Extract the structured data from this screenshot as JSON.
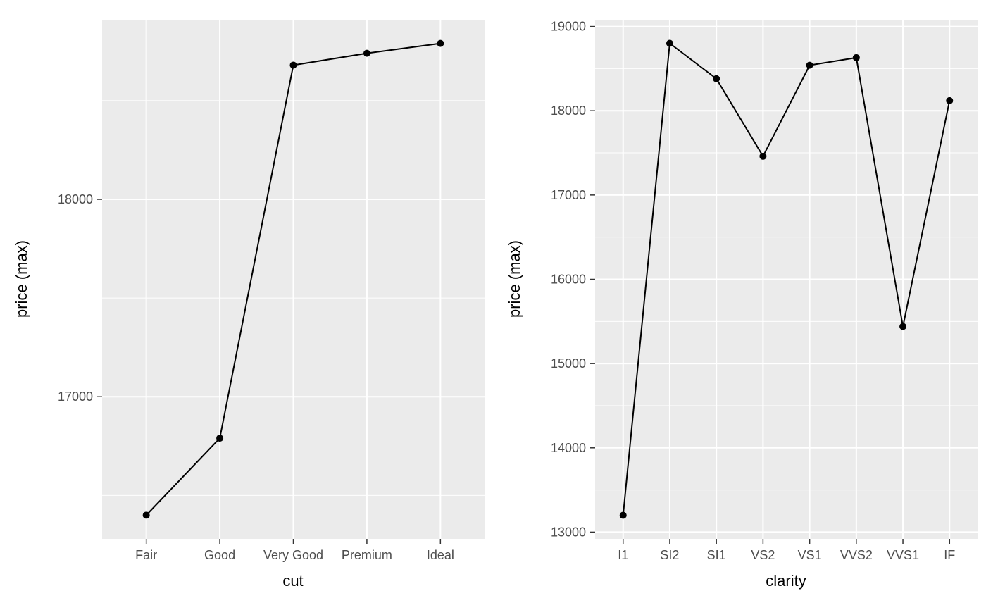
{
  "theme": {
    "panel_bg": "#EBEBEB",
    "grid_color": "#FFFFFF",
    "line_color": "#000000",
    "point_color": "#000000",
    "tick_color": "#333333",
    "tick_label_color": "#4D4D4D",
    "axis_title_color": "#000000",
    "background": "#FFFFFF"
  },
  "chart_data": [
    {
      "type": "line",
      "title": "",
      "xlabel": "cut",
      "ylabel": "price (max)",
      "categories": [
        "Fair",
        "Good",
        "Very Good",
        "Premium",
        "Ideal"
      ],
      "values": [
        16400,
        16790,
        18680,
        18740,
        18790
      ],
      "ylim": [
        16280,
        18910
      ],
      "yticks": [
        17000,
        18000
      ],
      "yticks_minor": [
        16500,
        17500,
        18500
      ],
      "legend": "none",
      "grid": "on"
    },
    {
      "type": "line",
      "title": "",
      "xlabel": "clarity",
      "ylabel": "price (max)",
      "categories": [
        "I1",
        "SI2",
        "SI1",
        "VS2",
        "VS1",
        "VVS2",
        "VVS1",
        "IF"
      ],
      "values": [
        13200,
        18800,
        18380,
        17460,
        18540,
        18630,
        15440,
        18120
      ],
      "ylim": [
        12920,
        19080
      ],
      "yticks": [
        13000,
        14000,
        15000,
        16000,
        17000,
        18000,
        19000
      ],
      "yticks_minor": [
        13500,
        14500,
        15500,
        16500,
        17500,
        18500
      ],
      "legend": "none",
      "grid": "on"
    }
  ]
}
